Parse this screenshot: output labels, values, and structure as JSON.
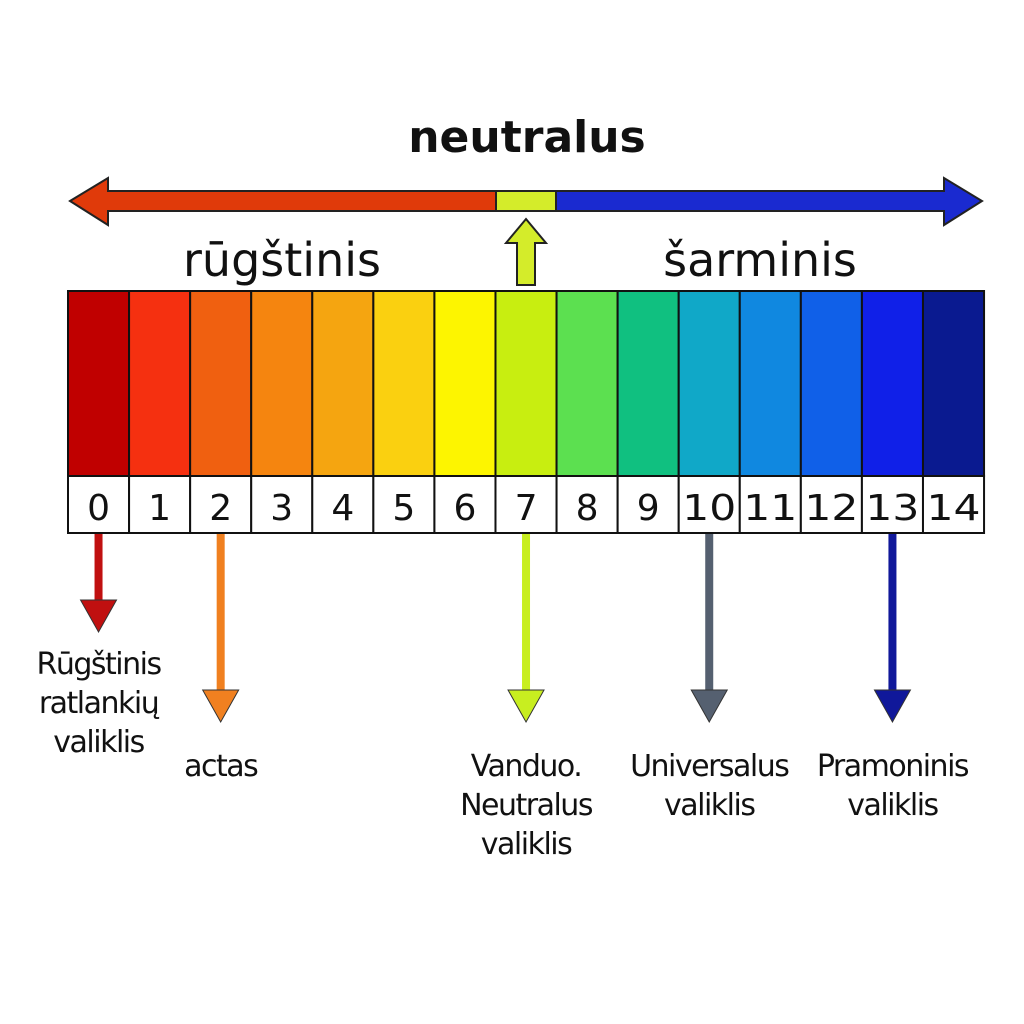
{
  "title": "neutralus",
  "acid_label": "rūgštinis",
  "base_label": "šarminis",
  "colors": {
    "acid_arrow": "#e03a0a",
    "neutral_segment": "#d4ec2a",
    "base_arrow": "#1a2ad0",
    "cells": [
      "#c00000",
      "#f53010",
      "#f06010",
      "#f5850f",
      "#f5a510",
      "#fad010",
      "#fdf500",
      "#c8ee10",
      "#5ce050",
      "#10c080",
      "#10a8c8",
      "#1088e0",
      "#1060e8",
      "#1020e8",
      "#0a1a90"
    ]
  },
  "scale": [
    "0",
    "1",
    "2",
    "3",
    "4",
    "5",
    "6",
    "7",
    "8",
    "9",
    "10",
    "11",
    "12",
    "13",
    "14"
  ],
  "markers": [
    {
      "ph": 0,
      "color": "#c01010",
      "lines": [
        "Rūgštinis",
        "ratlankių",
        "valiklis"
      ]
    },
    {
      "ph": 2,
      "color": "#f08020",
      "lines": [
        "actas"
      ]
    },
    {
      "ph": 7,
      "color": "#c8ee20",
      "lines": [
        "Vanduo.",
        "Neutralus",
        "valiklis"
      ]
    },
    {
      "ph": 10,
      "color": "#556070",
      "lines": [
        "Universalus",
        "valiklis"
      ]
    },
    {
      "ph": 13,
      "color": "#10189a",
      "lines": [
        "Pramoninis",
        "valiklis"
      ]
    }
  ]
}
